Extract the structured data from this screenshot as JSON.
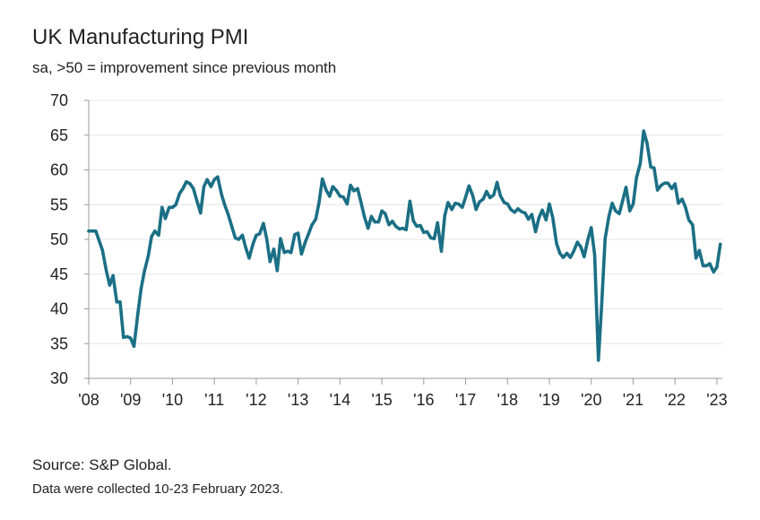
{
  "title": "UK Manufacturing PMI",
  "subtitle": "sa, >50 = improvement since previous month",
  "footer": {
    "source": "Source: S&P Global.",
    "note": "Data were collected 10-23 February 2023."
  },
  "colors": {
    "line": "#1b6f85",
    "axis": "#9a9a9a",
    "grid": "#e6e6e6"
  },
  "chart_data": {
    "type": "line",
    "title": "UK Manufacturing PMI",
    "subtitle": "sa, >50 = improvement since previous month",
    "xlabel": "",
    "ylabel": "",
    "ylim": [
      30,
      70
    ],
    "yticks": [
      "30",
      "35",
      "40",
      "45",
      "50",
      "55",
      "60",
      "65",
      "70"
    ],
    "xlim": [
      2008.0,
      2023.13
    ],
    "xticks": [
      {
        "value": 2008,
        "label": "'08"
      },
      {
        "value": 2009,
        "label": "'09"
      },
      {
        "value": 2010,
        "label": "'10"
      },
      {
        "value": 2011,
        "label": "'11"
      },
      {
        "value": 2012,
        "label": "'12"
      },
      {
        "value": 2013,
        "label": "'13"
      },
      {
        "value": 2014,
        "label": "'14"
      },
      {
        "value": 2015,
        "label": "'15"
      },
      {
        "value": 2016,
        "label": "'16"
      },
      {
        "value": 2017,
        "label": "'17"
      },
      {
        "value": 2018,
        "label": "'18"
      },
      {
        "value": 2019,
        "label": "'19"
      },
      {
        "value": 2020,
        "label": "'20"
      },
      {
        "value": 2021,
        "label": "'21"
      },
      {
        "value": 2022,
        "label": "'22"
      },
      {
        "value": 2023,
        "label": "'23"
      }
    ],
    "grid": "horizontal",
    "series": [
      {
        "color": "#1b6f85",
        "points": [
          [
            2008.0,
            51.2
          ],
          [
            2008.17,
            51.2
          ],
          [
            2008.33,
            48.4
          ],
          [
            2008.42,
            45.5
          ],
          [
            2008.5,
            43.4
          ],
          [
            2008.58,
            44.8
          ],
          [
            2008.67,
            41.0
          ],
          [
            2008.75,
            41.0
          ],
          [
            2008.83,
            35.9
          ],
          [
            2008.92,
            36.0
          ],
          [
            2009.0,
            35.8
          ],
          [
            2009.08,
            34.6
          ],
          [
            2009.17,
            39.2
          ],
          [
            2009.25,
            42.9
          ],
          [
            2009.33,
            45.4
          ],
          [
            2009.42,
            47.6
          ],
          [
            2009.5,
            50.4
          ],
          [
            2009.58,
            51.2
          ],
          [
            2009.67,
            50.6
          ],
          [
            2009.75,
            54.6
          ],
          [
            2009.83,
            53.0
          ],
          [
            2009.92,
            54.6
          ],
          [
            2010.0,
            54.6
          ],
          [
            2010.08,
            55.0
          ],
          [
            2010.17,
            56.6
          ],
          [
            2010.25,
            57.3
          ],
          [
            2010.33,
            58.3
          ],
          [
            2010.42,
            58.0
          ],
          [
            2010.5,
            57.3
          ],
          [
            2010.58,
            55.6
          ],
          [
            2010.67,
            53.8
          ],
          [
            2010.75,
            57.6
          ],
          [
            2010.83,
            58.6
          ],
          [
            2010.92,
            57.6
          ],
          [
            2011.0,
            58.6
          ],
          [
            2011.08,
            59.0
          ],
          [
            2011.17,
            56.5
          ],
          [
            2011.25,
            54.9
          ],
          [
            2011.33,
            53.6
          ],
          [
            2011.42,
            51.8
          ],
          [
            2011.5,
            50.2
          ],
          [
            2011.58,
            50.0
          ],
          [
            2011.67,
            50.6
          ],
          [
            2011.75,
            48.8
          ],
          [
            2011.83,
            47.3
          ],
          [
            2011.92,
            49.3
          ],
          [
            2012.0,
            50.6
          ],
          [
            2012.08,
            50.8
          ],
          [
            2012.17,
            52.3
          ],
          [
            2012.25,
            50.1
          ],
          [
            2012.33,
            46.8
          ],
          [
            2012.42,
            48.6
          ],
          [
            2012.5,
            45.5
          ],
          [
            2012.58,
            50.1
          ],
          [
            2012.67,
            48.1
          ],
          [
            2012.75,
            48.3
          ],
          [
            2012.83,
            48.1
          ],
          [
            2012.92,
            50.7
          ],
          [
            2013.0,
            50.9
          ],
          [
            2013.08,
            47.9
          ],
          [
            2013.17,
            49.6
          ],
          [
            2013.25,
            50.8
          ],
          [
            2013.33,
            52.1
          ],
          [
            2013.42,
            52.9
          ],
          [
            2013.5,
            55.3
          ],
          [
            2013.58,
            58.7
          ],
          [
            2013.67,
            57.1
          ],
          [
            2013.75,
            56.2
          ],
          [
            2013.83,
            57.6
          ],
          [
            2013.92,
            57.0
          ],
          [
            2014.0,
            56.2
          ],
          [
            2014.08,
            56.1
          ],
          [
            2014.17,
            55.1
          ],
          [
            2014.25,
            57.8
          ],
          [
            2014.33,
            57.0
          ],
          [
            2014.42,
            57.3
          ],
          [
            2014.5,
            55.4
          ],
          [
            2014.58,
            53.3
          ],
          [
            2014.67,
            51.6
          ],
          [
            2014.75,
            53.3
          ],
          [
            2014.83,
            52.5
          ],
          [
            2014.92,
            52.5
          ],
          [
            2015.0,
            54.1
          ],
          [
            2015.08,
            53.7
          ],
          [
            2015.17,
            52.1
          ],
          [
            2015.25,
            52.6
          ],
          [
            2015.33,
            51.9
          ],
          [
            2015.42,
            51.5
          ],
          [
            2015.5,
            51.6
          ],
          [
            2015.58,
            51.4
          ],
          [
            2015.67,
            55.5
          ],
          [
            2015.75,
            52.7
          ],
          [
            2015.83,
            51.9
          ],
          [
            2015.92,
            52.0
          ],
          [
            2016.0,
            51.0
          ],
          [
            2016.08,
            51.1
          ],
          [
            2016.17,
            50.2
          ],
          [
            2016.25,
            50.1
          ],
          [
            2016.33,
            52.4
          ],
          [
            2016.42,
            48.3
          ],
          [
            2016.5,
            53.4
          ],
          [
            2016.58,
            55.3
          ],
          [
            2016.67,
            54.3
          ],
          [
            2016.75,
            55.2
          ],
          [
            2016.83,
            55.1
          ],
          [
            2016.92,
            54.6
          ],
          [
            2017.0,
            56.1
          ],
          [
            2017.08,
            57.7
          ],
          [
            2017.17,
            56.3
          ],
          [
            2017.25,
            54.3
          ],
          [
            2017.33,
            55.4
          ],
          [
            2017.42,
            55.8
          ],
          [
            2017.5,
            56.9
          ],
          [
            2017.58,
            56.0
          ],
          [
            2017.67,
            56.4
          ],
          [
            2017.75,
            58.2
          ],
          [
            2017.83,
            56.3
          ],
          [
            2017.92,
            55.3
          ],
          [
            2018.0,
            55.1
          ],
          [
            2018.08,
            54.3
          ],
          [
            2018.17,
            53.9
          ],
          [
            2018.25,
            54.4
          ],
          [
            2018.33,
            54.0
          ],
          [
            2018.42,
            53.8
          ],
          [
            2018.5,
            52.9
          ],
          [
            2018.58,
            53.6
          ],
          [
            2018.67,
            51.1
          ],
          [
            2018.75,
            53.1
          ],
          [
            2018.83,
            54.2
          ],
          [
            2018.92,
            52.8
          ],
          [
            2019.0,
            55.1
          ],
          [
            2019.08,
            53.1
          ],
          [
            2019.17,
            49.4
          ],
          [
            2019.25,
            48.0
          ],
          [
            2019.33,
            47.4
          ],
          [
            2019.42,
            48.0
          ],
          [
            2019.5,
            47.4
          ],
          [
            2019.58,
            48.3
          ],
          [
            2019.67,
            49.6
          ],
          [
            2019.75,
            48.9
          ],
          [
            2019.83,
            47.5
          ],
          [
            2019.92,
            50.0
          ],
          [
            2020.0,
            51.7
          ],
          [
            2020.08,
            47.8
          ],
          [
            2020.17,
            32.6
          ],
          [
            2020.25,
            40.7
          ],
          [
            2020.33,
            50.1
          ],
          [
            2020.42,
            53.3
          ],
          [
            2020.5,
            55.2
          ],
          [
            2020.58,
            54.1
          ],
          [
            2020.67,
            53.7
          ],
          [
            2020.75,
            55.6
          ],
          [
            2020.83,
            57.5
          ],
          [
            2020.92,
            54.1
          ],
          [
            2021.0,
            55.1
          ],
          [
            2021.08,
            58.9
          ],
          [
            2021.17,
            60.9
          ],
          [
            2021.25,
            65.6
          ],
          [
            2021.33,
            63.9
          ],
          [
            2021.42,
            60.4
          ],
          [
            2021.5,
            60.3
          ],
          [
            2021.58,
            57.1
          ],
          [
            2021.67,
            57.8
          ],
          [
            2021.75,
            58.1
          ],
          [
            2021.83,
            58.1
          ],
          [
            2021.92,
            57.3
          ],
          [
            2022.0,
            58.0
          ],
          [
            2022.08,
            55.2
          ],
          [
            2022.17,
            55.8
          ],
          [
            2022.25,
            54.6
          ],
          [
            2022.33,
            52.8
          ],
          [
            2022.42,
            52.1
          ],
          [
            2022.5,
            47.3
          ],
          [
            2022.58,
            48.4
          ],
          [
            2022.67,
            46.2
          ],
          [
            2022.75,
            46.2
          ],
          [
            2022.83,
            46.5
          ],
          [
            2022.92,
            45.3
          ],
          [
            2023.0,
            46.0
          ],
          [
            2023.08,
            49.3
          ]
        ]
      }
    ]
  }
}
